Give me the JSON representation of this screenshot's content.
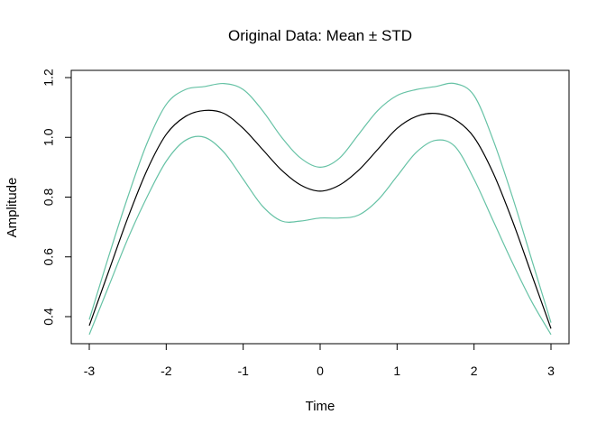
{
  "chart_data": {
    "type": "line",
    "title": "Original Data: Mean ± STD",
    "xlabel": "Time",
    "ylabel": "Amplitude",
    "xlim": [
      -3,
      3
    ],
    "ylim": [
      0.3,
      1.2
    ],
    "x_ticks": [
      "-3",
      "-2",
      "-1",
      "0",
      "1",
      "2",
      "3"
    ],
    "y_ticks": [
      "0.4",
      "0.6",
      "0.8",
      "1.0",
      "1.2"
    ],
    "grid": false,
    "series": [
      {
        "color": "#000000",
        "x": [
          -3.0,
          -2.75,
          -2.5,
          -2.25,
          -2.0,
          -1.75,
          -1.5,
          -1.25,
          -1.0,
          -0.75,
          -0.5,
          -0.25,
          0.0,
          0.25,
          0.5,
          0.75,
          1.0,
          1.25,
          1.5,
          1.75,
          2.0,
          2.25,
          2.5,
          2.75,
          3.0
        ],
        "y": [
          0.37,
          0.55,
          0.73,
          0.89,
          1.01,
          1.07,
          1.09,
          1.08,
          1.03,
          0.96,
          0.89,
          0.84,
          0.82,
          0.84,
          0.89,
          0.96,
          1.03,
          1.07,
          1.08,
          1.06,
          1.0,
          0.88,
          0.72,
          0.54,
          0.36
        ]
      },
      {
        "color": "#66c2a5",
        "x": [
          -3.0,
          -2.75,
          -2.5,
          -2.25,
          -2.0,
          -1.75,
          -1.5,
          -1.25,
          -1.0,
          -0.75,
          -0.5,
          -0.25,
          0.0,
          0.25,
          0.5,
          0.75,
          1.0,
          1.25,
          1.5,
          1.75,
          2.0,
          2.25,
          2.5,
          2.75,
          3.0
        ],
        "y": [
          0.39,
          0.6,
          0.8,
          0.98,
          1.11,
          1.16,
          1.17,
          1.18,
          1.16,
          1.09,
          1.0,
          0.93,
          0.9,
          0.93,
          1.01,
          1.09,
          1.14,
          1.16,
          1.17,
          1.18,
          1.14,
          0.99,
          0.8,
          0.59,
          0.38
        ]
      },
      {
        "color": "#66c2a5",
        "x": [
          -3.0,
          -2.75,
          -2.5,
          -2.25,
          -2.0,
          -1.75,
          -1.5,
          -1.25,
          -1.0,
          -0.75,
          -0.5,
          -0.25,
          0.0,
          0.25,
          0.5,
          0.75,
          1.0,
          1.25,
          1.5,
          1.75,
          2.0,
          2.25,
          2.5,
          2.75,
          3.0
        ],
        "y": [
          0.34,
          0.5,
          0.66,
          0.8,
          0.92,
          0.99,
          1.0,
          0.95,
          0.86,
          0.77,
          0.72,
          0.72,
          0.73,
          0.73,
          0.74,
          0.79,
          0.87,
          0.95,
          0.99,
          0.97,
          0.86,
          0.72,
          0.58,
          0.45,
          0.34
        ]
      }
    ]
  }
}
